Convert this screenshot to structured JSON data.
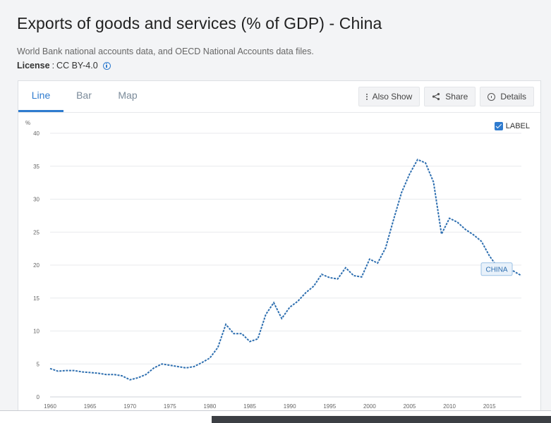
{
  "page": {
    "title": "Exports of goods and services (% of GDP) - China",
    "source": "World Bank national accounts data, and OECD National Accounts data files.",
    "license_label": "License",
    "license_sep": ":",
    "license_value": "CC BY-4.0"
  },
  "tabs": [
    {
      "label": "Line",
      "active": true
    },
    {
      "label": "Bar",
      "active": false
    },
    {
      "label": "Map",
      "active": false
    }
  ],
  "toolbar": {
    "also_show": "Also Show",
    "share": "Share",
    "details": "Details"
  },
  "label_toggle": {
    "label": "LABEL",
    "checked": true
  },
  "colors": {
    "accent": "#2e7bcf",
    "series": "#2e6fb0"
  },
  "chart_data": {
    "type": "line",
    "title": "",
    "xlabel": "",
    "ylabel": "%",
    "xlim": [
      1960,
      2019
    ],
    "ylim": [
      0,
      40
    ],
    "x_ticks": [
      1960,
      1965,
      1970,
      1975,
      1980,
      1985,
      1990,
      1995,
      2000,
      2005,
      2010,
      2015
    ],
    "y_ticks": [
      0,
      5,
      10,
      15,
      20,
      25,
      30,
      35,
      40
    ],
    "grid": true,
    "series": [
      {
        "name": "CHINA",
        "x": [
          1960,
          1961,
          1962,
          1963,
          1964,
          1965,
          1966,
          1967,
          1968,
          1969,
          1970,
          1971,
          1972,
          1973,
          1974,
          1975,
          1976,
          1977,
          1978,
          1979,
          1980,
          1981,
          1982,
          1983,
          1984,
          1985,
          1986,
          1987,
          1988,
          1989,
          1990,
          1991,
          1992,
          1993,
          1994,
          1995,
          1996,
          1997,
          1998,
          1999,
          2000,
          2001,
          2002,
          2003,
          2004,
          2005,
          2006,
          2007,
          2008,
          2009,
          2010,
          2011,
          2012,
          2013,
          2014,
          2015,
          2016,
          2017,
          2018,
          2019
        ],
        "values": [
          4.3,
          3.9,
          4.0,
          4.0,
          3.8,
          3.7,
          3.6,
          3.4,
          3.4,
          3.2,
          2.6,
          2.9,
          3.4,
          4.4,
          5.0,
          4.8,
          4.6,
          4.4,
          4.6,
          5.2,
          5.9,
          7.5,
          11.0,
          9.6,
          9.6,
          8.4,
          8.8,
          12.5,
          14.3,
          11.9,
          13.6,
          14.5,
          15.8,
          16.8,
          18.6,
          18.1,
          17.9,
          19.6,
          18.4,
          18.2,
          20.9,
          20.3,
          22.6,
          26.9,
          31.0,
          33.8,
          36.0,
          35.5,
          32.6,
          24.7,
          27.1,
          26.5,
          25.4,
          24.6,
          23.6,
          21.4,
          19.7,
          19.8,
          19.1,
          18.4
        ]
      }
    ]
  }
}
